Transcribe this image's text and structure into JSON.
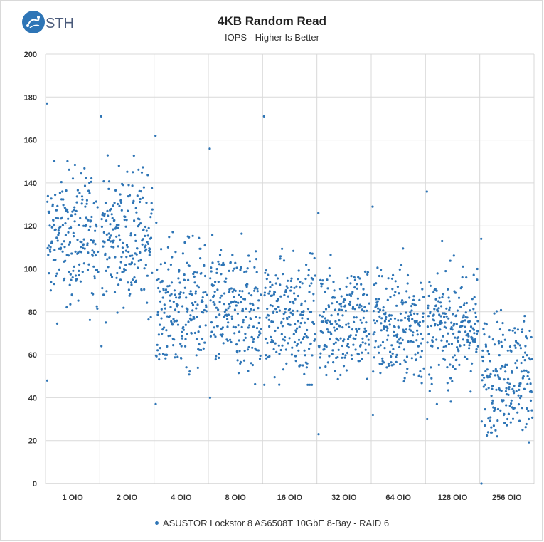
{
  "brand": {
    "logo_text": "STH",
    "accent": "#2e75b6",
    "logo_color": "#4a5a7a"
  },
  "chart_data": {
    "type": "scatter",
    "title": "4KB Random Read",
    "subtitle": "IOPS - Higher Is Better",
    "xlabel": "",
    "ylabel": "",
    "ylim": [
      0,
      200
    ],
    "yticks": [
      0,
      20,
      40,
      60,
      80,
      100,
      120,
      140,
      160,
      180,
      200
    ],
    "grid": true,
    "categories": [
      "1 OIO",
      "2 OIO",
      "4 OIO",
      "8 OIO",
      "16 OIO",
      "32 OIO",
      "64 OIO",
      "128 OIO",
      "256 OIO"
    ],
    "legend_position": "bottom",
    "series": [
      {
        "name": "ASUSTOR Lockstor 8 AS6508T 10GbE 8-Bay - RAID 6",
        "color": "#2e75b6",
        "points_per_category": 200,
        "groups": [
          {
            "category": "1 OIO",
            "mean": 115,
            "spread": 18,
            "min": 48,
            "max": 177
          },
          {
            "category": "2 OIO",
            "mean": 115,
            "spread": 18,
            "min": 64,
            "max": 171
          },
          {
            "category": "4 OIO",
            "mean": 82,
            "spread": 18,
            "min": 37,
            "max": 162
          },
          {
            "category": "8 OIO",
            "mean": 80,
            "spread": 17,
            "min": 40,
            "max": 156
          },
          {
            "category": "16 OIO",
            "mean": 78,
            "spread": 16,
            "min": 46,
            "max": 171
          },
          {
            "category": "32 OIO",
            "mean": 76,
            "spread": 16,
            "min": 23,
            "max": 126
          },
          {
            "category": "64 OIO",
            "mean": 74,
            "spread": 16,
            "min": 32,
            "max": 129
          },
          {
            "category": "128 OIO",
            "mean": 73,
            "spread": 16,
            "min": 30,
            "max": 136
          },
          {
            "category": "256 OIO",
            "mean": 52,
            "spread": 16,
            "min": 0,
            "max": 114
          }
        ]
      }
    ]
  }
}
